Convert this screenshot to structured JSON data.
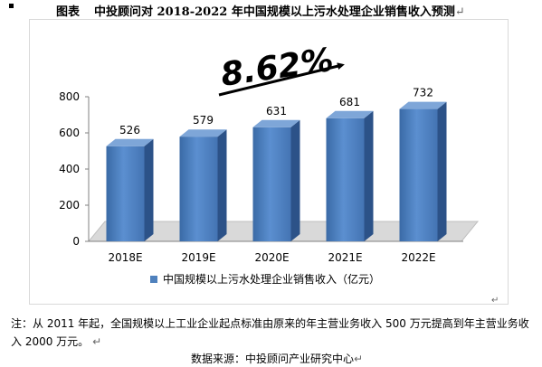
{
  "header": {
    "label": "图表",
    "title": "中投顾问对 2018-2022 年中国规模以上污水处理企业销售收入预测",
    "mark": "↵"
  },
  "chart_data": {
    "type": "bar",
    "style": "3d",
    "categories": [
      "2018E",
      "2019E",
      "2020E",
      "2021E",
      "2022E"
    ],
    "series": [
      {
        "name": "中国规模以上污水处理企业销售收入（亿元）",
        "values": [
          526,
          579,
          631,
          681,
          732
        ]
      }
    ],
    "data_labels": [
      "526",
      "579",
      "631",
      "681",
      "732"
    ],
    "ylim": [
      0,
      800
    ],
    "yticks": [
      0,
      200,
      400,
      600,
      800
    ],
    "grid": false,
    "legend_position": "bottom",
    "annotation": "8.62%",
    "colors": {
      "bar": "#4f81bd",
      "bar_side": "#2c5288",
      "bar_top": "#7ea6d8",
      "floor": "#d9d9d9"
    }
  },
  "note": {
    "text": "注：从 2011 年起，全国规模以上工业企业起点标准由原来的年主营业务收入 500 万元提高到年主营业务收入 2000 万元。",
    "mark": "↵"
  },
  "source": {
    "text": "数据来源：中投顾问产业研究中心",
    "mark": "↵"
  },
  "chart_end_mark": "↵"
}
